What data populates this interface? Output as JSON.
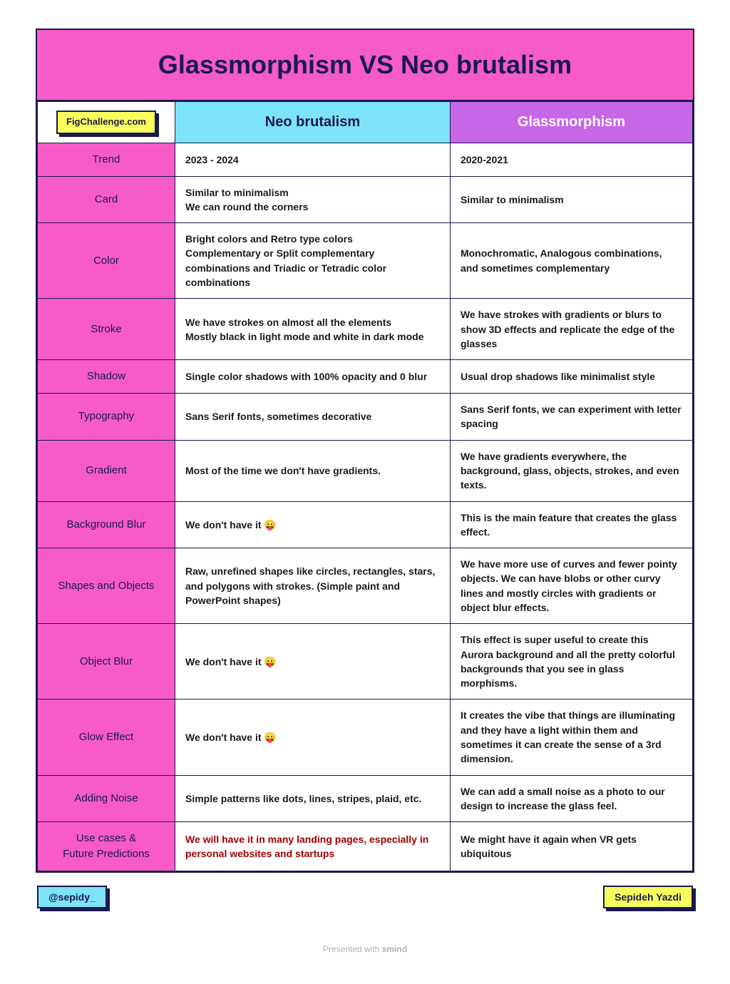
{
  "title": "Glassmorphism VS Neo brutalism",
  "header": {
    "label_badge": "FigChallenge.com",
    "col_a": "Neo brutalism",
    "col_b": "Glassmorphism"
  },
  "rows": [
    {
      "label": "Trend",
      "a": "2023 - 2024",
      "b": "2020-2021"
    },
    {
      "label": "Card",
      "a": "Similar to minimalism\nWe can round the corners",
      "b": "Similar to minimalism"
    },
    {
      "label": "Color",
      "a": "Bright colors and Retro type colors\nComplementary or Split complementary combinations and Triadic or Tetradic color combinations",
      "b": "Monochromatic, Analogous combinations, and sometimes complementary"
    },
    {
      "label": "Stroke",
      "a": "We have strokes on almost all the elements\nMostly black in light mode and white in dark mode",
      "b": "We have strokes with gradients or blurs to show 3D effects and replicate the edge of the glasses"
    },
    {
      "label": "Shadow",
      "a": "Single color shadows with 100% opacity and 0 blur",
      "b": "Usual drop shadows like minimalist style"
    },
    {
      "label": "Typography",
      "a": "Sans Serif fonts, sometimes decorative",
      "b": "Sans Serif fonts, we can experiment with letter spacing"
    },
    {
      "label": "Gradient",
      "a": "Most of the time we don't have gradients.",
      "b": "We have gradients everywhere, the background, glass, objects, strokes, and even texts."
    },
    {
      "label": "Background Blur",
      "a": "We don't have it 😛",
      "b": "This is the main feature that creates the glass effect."
    },
    {
      "label": "Shapes and Objects",
      "a": "Raw, unrefined shapes like circles, rectangles, stars, and polygons with strokes. (Simple paint and PowerPoint shapes)",
      "b": "We have more use of curves and fewer pointy objects. We can have blobs or other curvy lines and mostly circles with gradients or object blur effects."
    },
    {
      "label": "Object Blur",
      "a": "We don't have it 😛",
      "b": "This effect is super useful to create this Aurora background and all the pretty colorful backgrounds that you see in glass morphisms."
    },
    {
      "label": "Glow Effect",
      "a": "We don't have it 😛",
      "b": "It creates the vibe that things are illuminating and they have a light within them and sometimes it can create the sense of a 3rd dimension."
    },
    {
      "label": "Adding Noise",
      "a": "Simple patterns like dots, lines, stripes, plaid, etc.",
      "b": "We can add a small noise as a photo to our design to increase the glass feel."
    },
    {
      "label": "Use cases &\nFuture Predictions",
      "a": "We will have it in many landing pages, especially in personal websites and startups",
      "b": "We might have it again when VR gets ubiquitous",
      "a_red": true
    }
  ],
  "footer": {
    "handle": "@sepidy_",
    "author": "Sepideh Yazdi"
  },
  "presented_prefix": "Presented with ",
  "presented_brand": "xmind",
  "colors": {
    "border": "#1a1a4d",
    "pink": "#f75bc8",
    "purple": "#c866e8",
    "cyan": "#7de3f7",
    "yellow": "#f8ff5c"
  }
}
